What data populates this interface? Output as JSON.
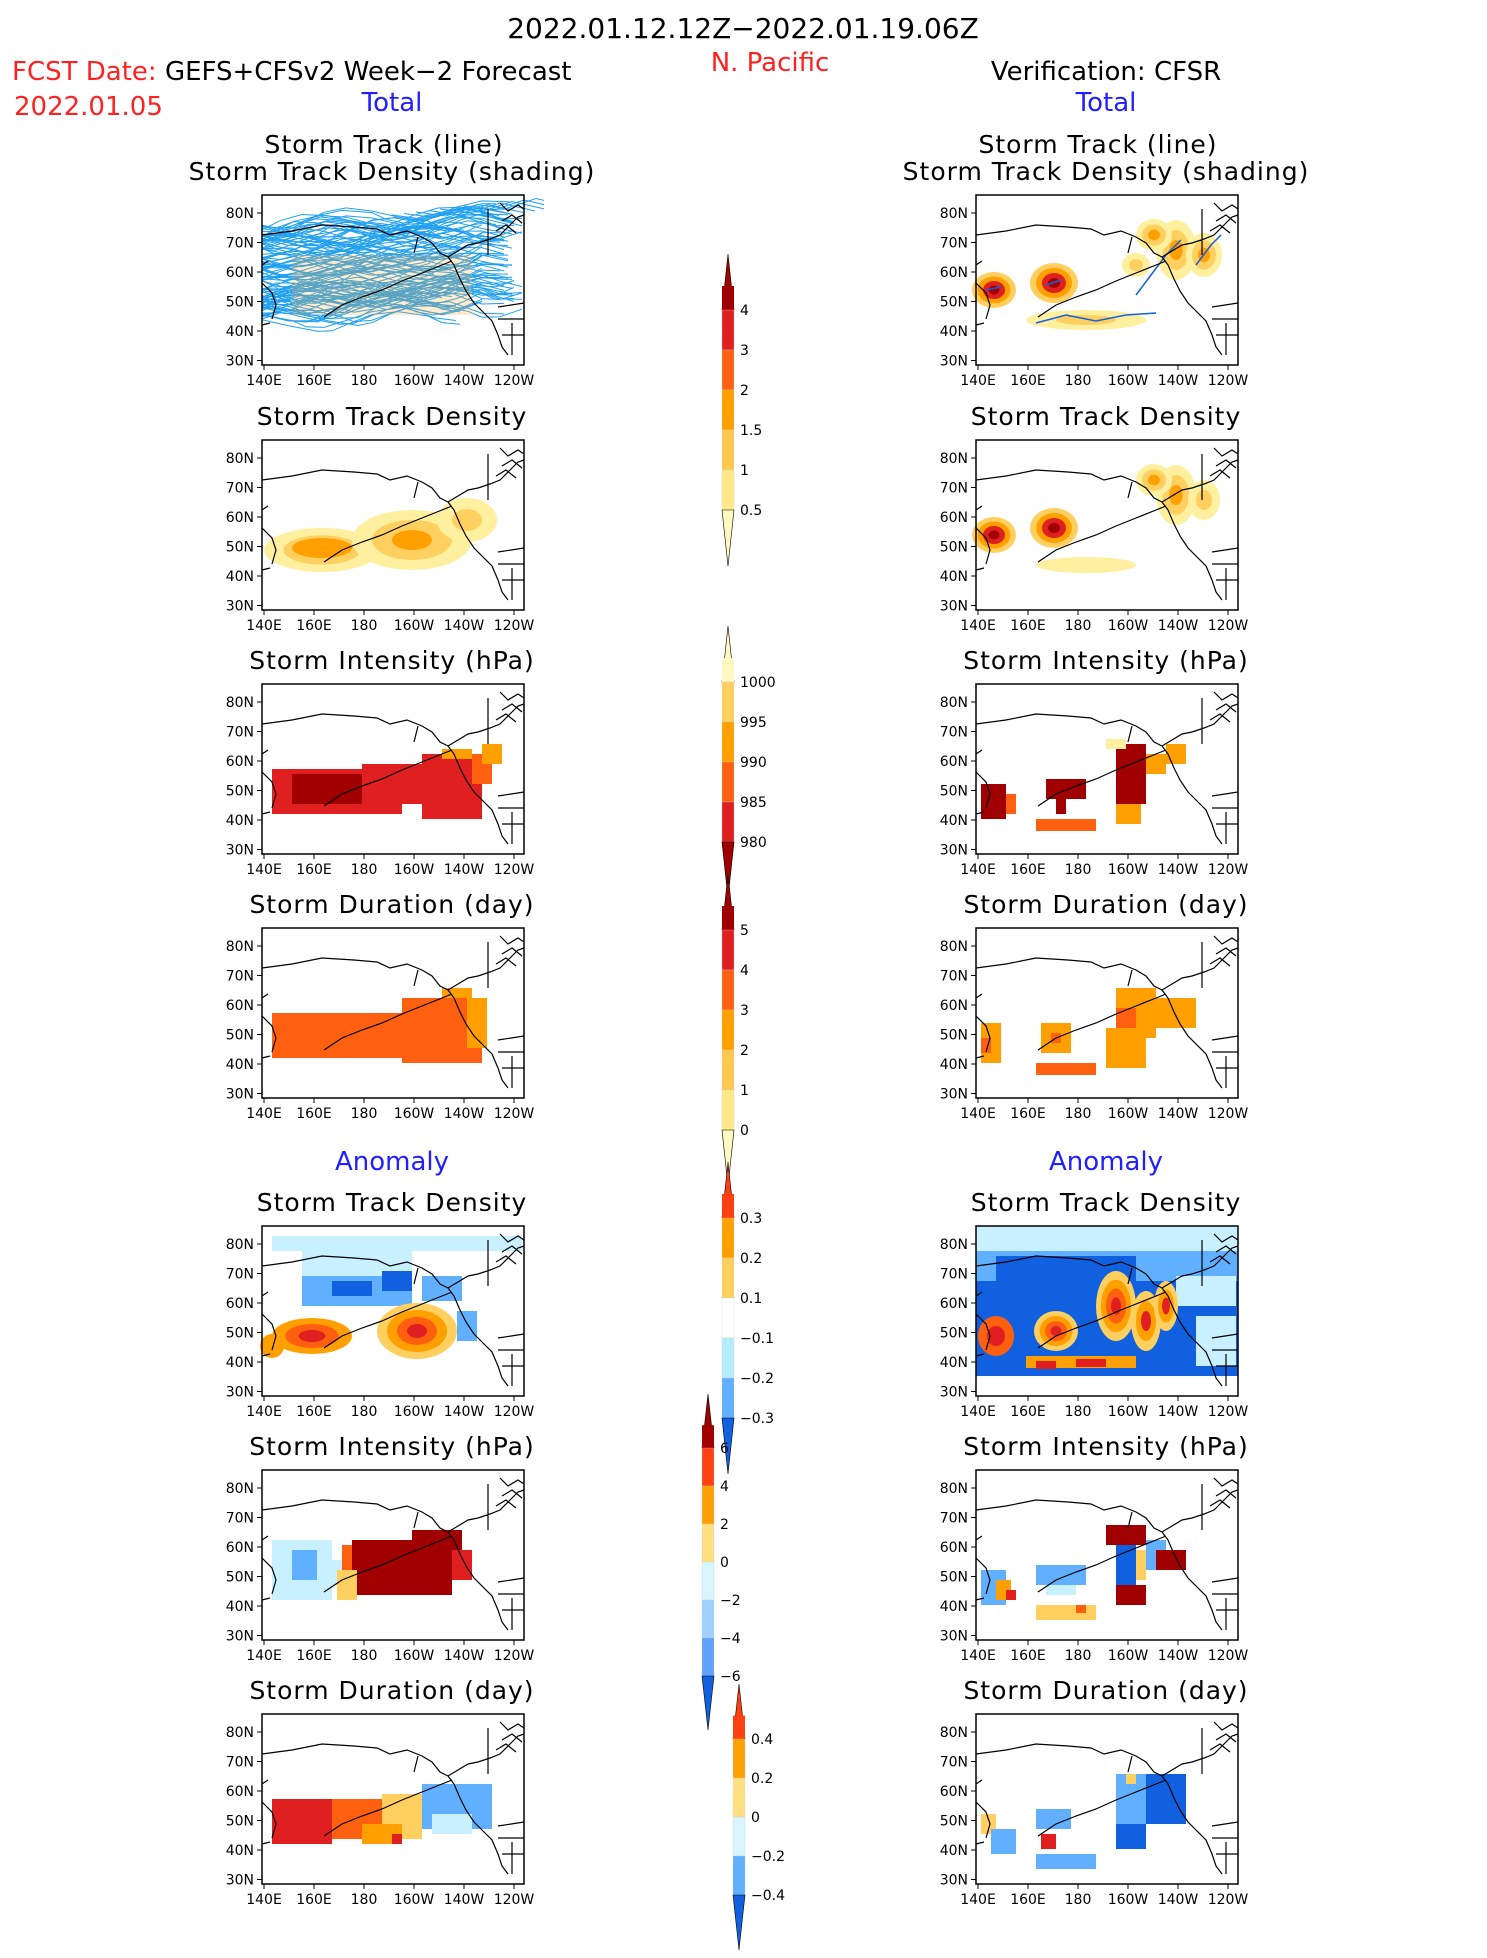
{
  "header": {
    "date_range": "2022.01.12.12Z−2022.01.19.06Z",
    "region": "N. Pacific",
    "fcst_prefix": "FCST Date:",
    "fcst_model": "GEFS+CFSv2 Week−2 Forecast",
    "fcst_date": "2022.01.05",
    "verification": "Verification: CFSR"
  },
  "sections": {
    "total_left": "Total",
    "total_right": "Total",
    "anomaly_left": "Anomaly",
    "anomaly_right": "Anomaly"
  },
  "panel_titles": {
    "track_line": "Storm Track (line)",
    "track_shading": "Storm Track Density (shading)",
    "density": "Storm Track Density",
    "intensity": "Storm Intensity (hPa)",
    "duration": "Storm Duration (day)"
  },
  "axes": {
    "lat_labels": [
      "80N",
      "70N",
      "60N",
      "50N",
      "40N",
      "30N"
    ],
    "lon_labels": [
      "140E",
      "160E",
      "180",
      "160W",
      "140W",
      "120W"
    ]
  },
  "colorbars": {
    "density_total": {
      "labels": [
        "4",
        "3",
        "2",
        "1.5",
        "1",
        "0.5"
      ],
      "colors": [
        "#a00000",
        "#e02020",
        "#ff6010",
        "#ffa000",
        "#ffc850",
        "#ffe888",
        "#fff8c0"
      ]
    },
    "intensity_total": {
      "labels": [
        "1000",
        "995",
        "990",
        "985",
        "980"
      ],
      "colors": [
        "#fff8c0",
        "#ffd060",
        "#ffa000",
        "#ff6010",
        "#e02020",
        "#a00000"
      ]
    },
    "duration_total": {
      "labels": [
        "5",
        "4",
        "3",
        "2",
        "1",
        "0"
      ],
      "colors": [
        "#a00000",
        "#e02020",
        "#ff6010",
        "#ffa000",
        "#ffc850",
        "#ffe888",
        "#fff8c0"
      ]
    },
    "density_anom": {
      "labels": [
        "0.3",
        "0.2",
        "0.1",
        "−0.1",
        "−0.2",
        "−0.3"
      ],
      "colors": [
        "#ff4010",
        "#ffa000",
        "#ffd060",
        "#ffffff",
        "#b8ecff",
        "#60b0ff",
        "#1060e0"
      ]
    },
    "intensity_anom": {
      "labels": [
        "6",
        "4",
        "2",
        "0",
        "−2",
        "−4",
        "−6"
      ],
      "colors": [
        "#a00000",
        "#ff4010",
        "#ffa000",
        "#ffe080",
        "#d8f4ff",
        "#a0d0ff",
        "#60a0ff",
        "#1060e0"
      ]
    },
    "duration_anom": {
      "labels": [
        "0.4",
        "0.2",
        "0",
        "−0.2",
        "−0.4"
      ],
      "colors": [
        "#ff4010",
        "#ffa000",
        "#ffe080",
        "#d8f4ff",
        "#60b0ff",
        "#1060e0"
      ]
    }
  },
  "fields": {
    "track_fcst": [
      [
        1,
        4,
        10,
        16,
        0.7
      ],
      [
        1,
        4,
        10,
        22,
        0.7
      ]
    ],
    "colors": {
      "track_line": "#20a0f0",
      "track_obs": "#1060e0"
    }
  }
}
